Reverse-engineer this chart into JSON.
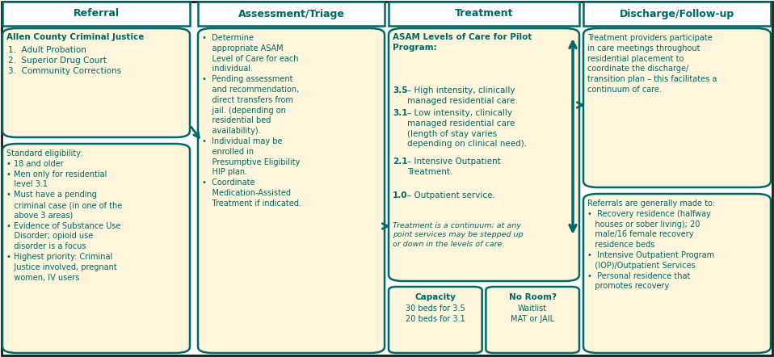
{
  "bg_color": "#ffffff",
  "header_bg": "#ffffff",
  "box_bg": "#fdf5dc",
  "border_color": "#006666",
  "text_color": "#3d7a3d",
  "outer_bg": "#1a1a1a",
  "headers": [
    "Referral",
    "Assessment/Triage",
    "Treatment",
    "Discharge/Follow-up"
  ],
  "referral_box1_title": "Allen County Criminal Justice",
  "referral_box1_body": "1.  Adult Probation\n2.  Superior Drug Court\n3.  Community Corrections",
  "referral_box2_text": "Standard eligibility:\n• 18 and older\n• Men only for residential\n   level 3.1\n• Must have a pending\n   criminal case (in one of the\n   above 3 areas)\n• Evidence of Substance Use\n   Disorder; opioid use\n   disorder is a focus\n• Highest priority: Criminal\n   Justice involved, pregnant\n   women, IV users",
  "assessment_text": "•  Determine\n    appropriate ASAM\n    Level of Care for each\n    individual.\n•  Pending assessment\n    and recommendation,\n    direct transfers from\n    jail. (depending on\n    residential bed\n    availability).\n•  Individual may be\n    enrolled in\n    Presumptive Eligibility\n    HIP plan.\n•  Coordinate\n    Medication-Assisted\n    Treatment if indicated.",
  "treatment_title": "ASAM Levels of Care for Pilot\nProgram:",
  "treatment_35_bold": "3.5",
  "treatment_35_text": "– High intensity, clinically\nmanaged residential care.",
  "treatment_31_bold": "3.1",
  "treatment_31_text": "– Low intensity, clinically\nmanaged residential care\n(length of stay varies\ndepending on clinical need).",
  "treatment_21_bold": "2.1",
  "treatment_21_text": "– Intensive Outpatient\nTreatment.",
  "treatment_10_bold": "1.0",
  "treatment_10_text": "– Outpatient service.",
  "treatment_italic": "Treatment is a continuum; at any\npoint services may be stepped up\nor down in the levels of care.",
  "capacity_title": "Capacity",
  "capacity_text": "30 beds for 3.5\n20 beds for 3.1",
  "noroom_title": "No Room?",
  "noroom_text": "Waitlist\nMAT or JAIL",
  "discharge_box1_text": "Treatment providers participate\nin care meetings throughout\nresidential placement to\ncoordinate the discharge/\ntransition plan – this facilitates a\ncontinuum of care.",
  "discharge_box2_text": "Referrals are generally made to:\n•  Recovery residence (halfway\n   houses or sober living); 20\n   male/16 female recovery\n   residence beds\n•  Intensive Outpatient Program\n   (IOP)/Outpatient Services\n•  Personal residence that\n   promotes recovery"
}
